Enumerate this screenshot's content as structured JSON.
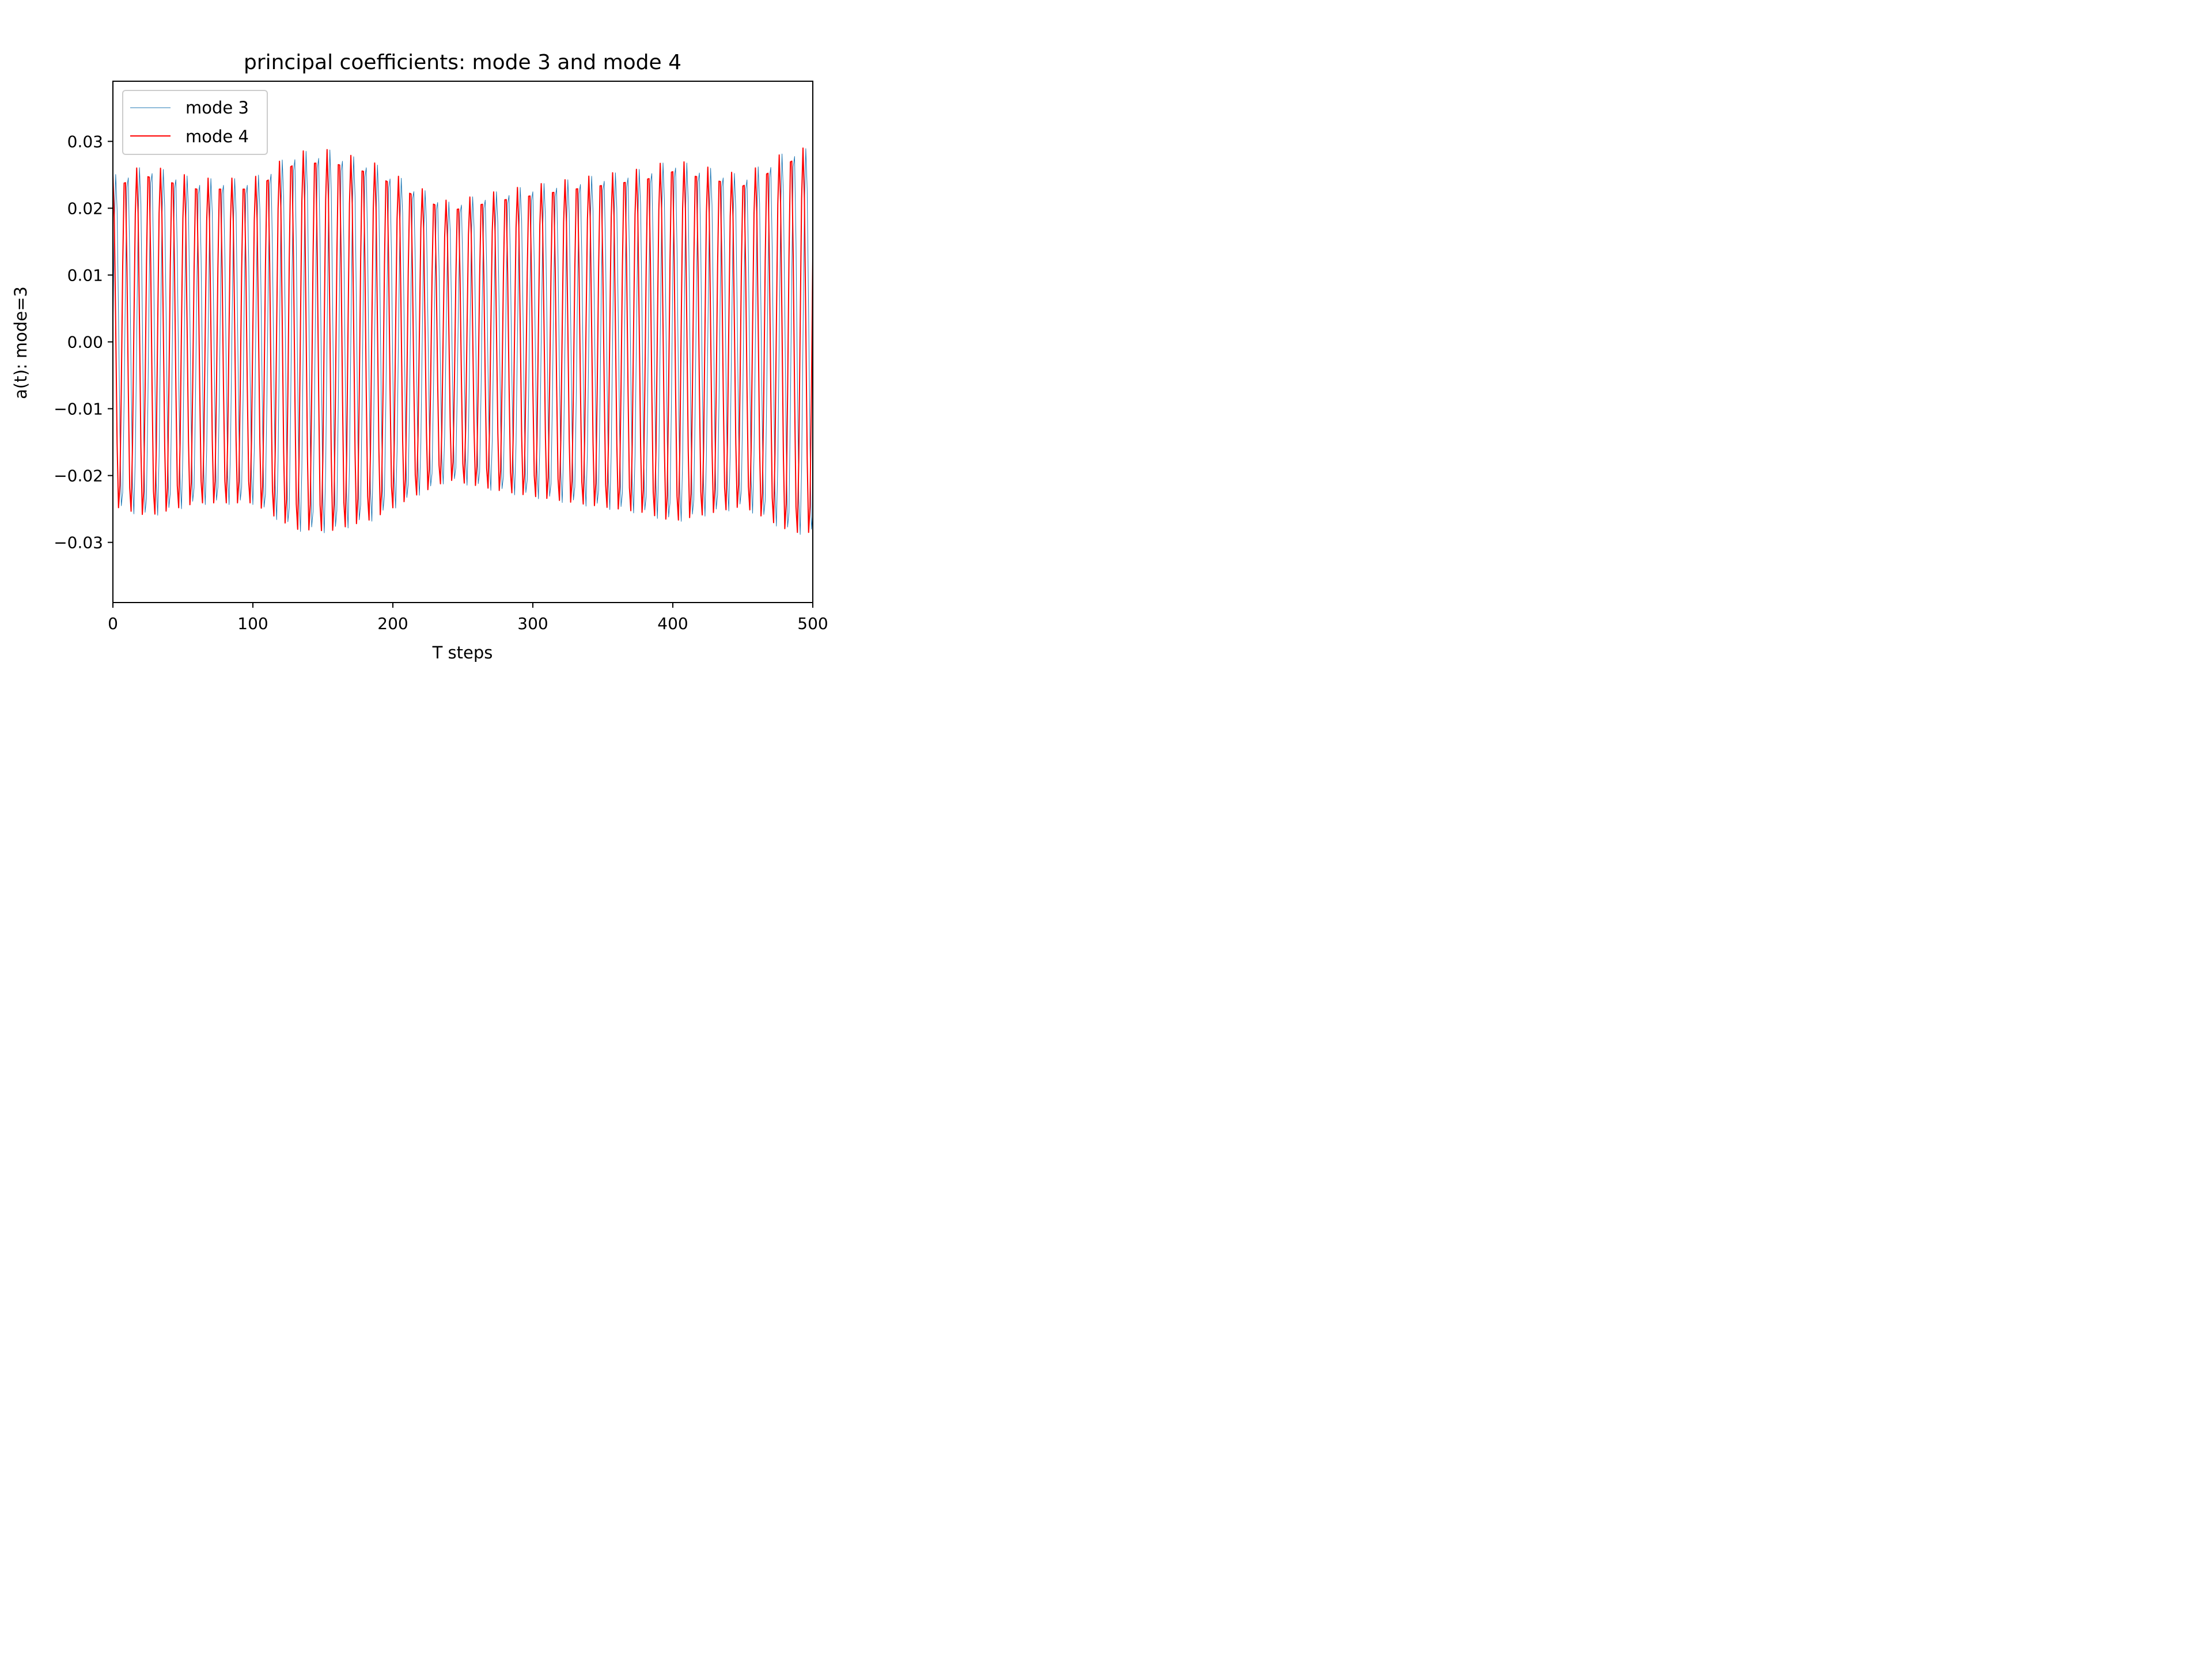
{
  "chart_data": {
    "type": "line",
    "title": "principal coefficients: mode 3 and mode 4",
    "xlabel": "T steps",
    "ylabel": "a(t): mode=3",
    "xlim": [
      0,
      500
    ],
    "ylim": [
      -0.039,
      0.039
    ],
    "xticks": [
      0,
      100,
      200,
      300,
      400,
      500
    ],
    "xtick_labels": [
      "0",
      "100",
      "200",
      "300",
      "400",
      "500"
    ],
    "yticks": [
      -0.03,
      -0.02,
      -0.01,
      0.0,
      0.01,
      0.02,
      0.03
    ],
    "ytick_labels": [
      "−0.03",
      "−0.02",
      "−0.01",
      "0.00",
      "0.01",
      "0.02",
      "0.03"
    ],
    "grid": false,
    "legend_position": "top-left",
    "period_steps": 8.5,
    "phase_offset_steps": 2.1,
    "amplitude_envelope": [
      {
        "t": 0,
        "amp": 0.025
      },
      {
        "t": 25,
        "amp": 0.0265
      },
      {
        "t": 60,
        "amp": 0.0245
      },
      {
        "t": 100,
        "amp": 0.0245
      },
      {
        "t": 130,
        "amp": 0.0285
      },
      {
        "t": 155,
        "amp": 0.0288
      },
      {
        "t": 185,
        "amp": 0.027
      },
      {
        "t": 215,
        "amp": 0.0235
      },
      {
        "t": 240,
        "amp": 0.021
      },
      {
        "t": 280,
        "amp": 0.0228
      },
      {
        "t": 330,
        "amp": 0.0245
      },
      {
        "t": 380,
        "amp": 0.026
      },
      {
        "t": 400,
        "amp": 0.0273
      },
      {
        "t": 450,
        "amp": 0.025
      },
      {
        "t": 485,
        "amp": 0.029
      },
      {
        "t": 500,
        "amp": 0.029
      }
    ],
    "series": [
      {
        "name": "mode 3",
        "color": "#1f77b4",
        "line_width": 1.0
      },
      {
        "name": "mode 4",
        "color": "#ff0000",
        "line_width": 2.0
      }
    ]
  }
}
